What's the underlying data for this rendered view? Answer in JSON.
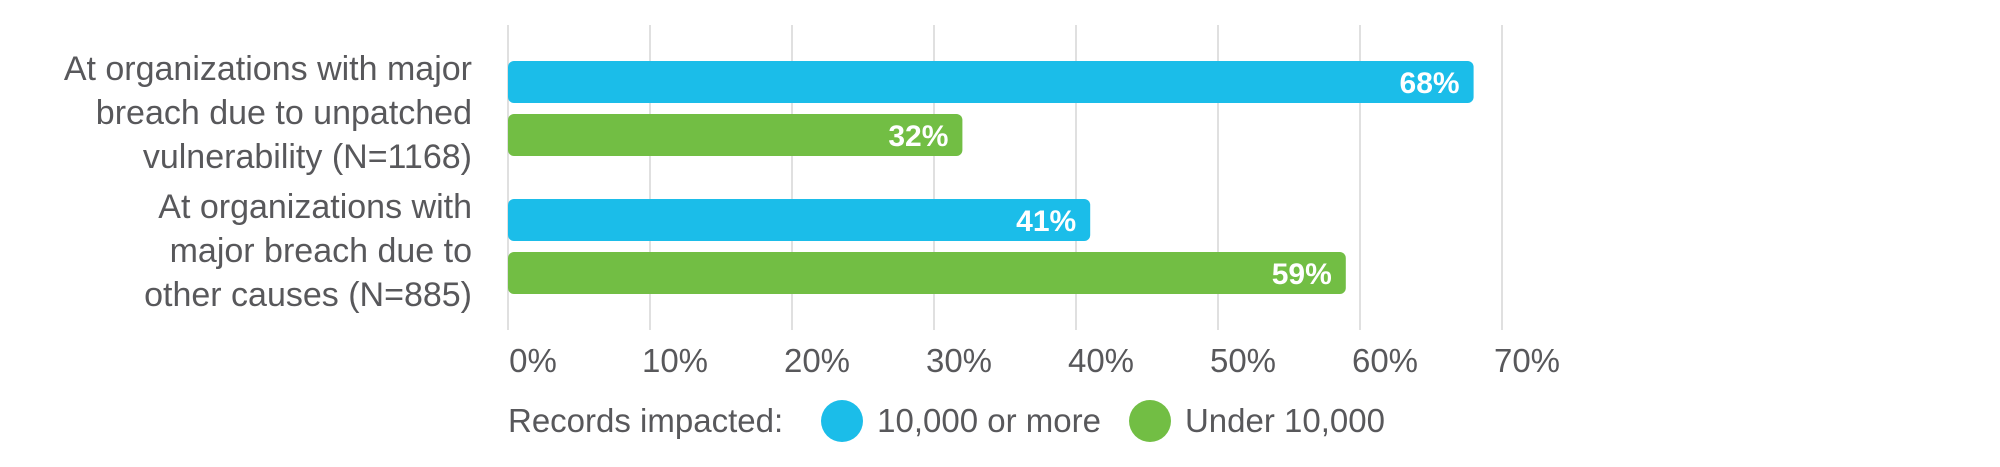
{
  "chart_data": {
    "type": "bar",
    "orientation": "horizontal",
    "categories": [
      "At organizations with major breach due to unpatched vulnerability (N=1168)",
      "At organizations with major breach due to other causes (N=885)"
    ],
    "category_lines": [
      [
        "At organizations with major",
        "breach due to unpatched",
        "vulnerability (N=1168)"
      ],
      [
        "At organizations with",
        "major breach due to",
        "other causes (N=885)"
      ]
    ],
    "series": [
      {
        "name": "10,000 or more",
        "color": "#1bbde9",
        "values": [
          68,
          41
        ],
        "labels": [
          "68%",
          "41%"
        ]
      },
      {
        "name": "Under 10,000",
        "color": "#72be44",
        "values": [
          32,
          59
        ],
        "labels": [
          "32%",
          "59%"
        ]
      }
    ],
    "xlim": [
      0,
      70
    ],
    "x_ticks": [
      0,
      10,
      20,
      30,
      40,
      50,
      60,
      70
    ],
    "x_tick_labels": [
      "0%",
      "10%",
      "20%",
      "30%",
      "40%",
      "50%",
      "60%",
      "70%"
    ],
    "grid": "vertical",
    "legend": {
      "title": "Records impacted:",
      "position": "bottom-left"
    }
  }
}
